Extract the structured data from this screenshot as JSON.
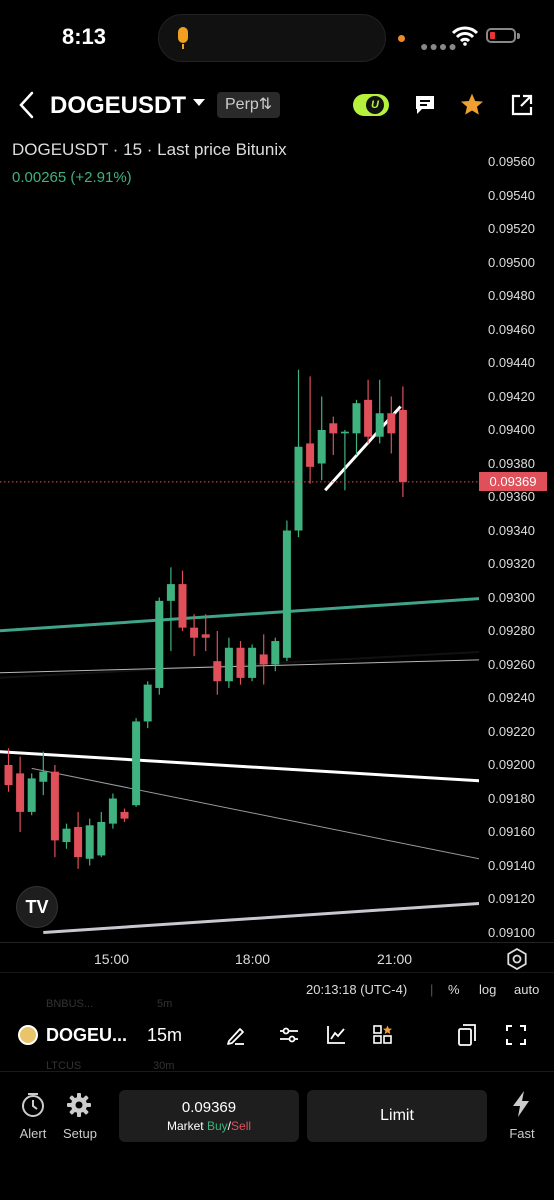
{
  "status_bar": {
    "time": "8:13"
  },
  "header": {
    "pair": "DOGEUSDT",
    "badge": "Perp",
    "badge_icon": "⇅",
    "toggle_letter": "U"
  },
  "chart": {
    "title": "DOGEUSDT · 15 · Last price Bitunix",
    "change": "0.00265 (+2.91%)",
    "last_price": "0.09369",
    "x_ticks": [
      "15:00",
      "18:00",
      "21:00"
    ],
    "time_readout": "20:13:18 (UTC-4)",
    "scale_options": [
      "%",
      "log",
      "auto"
    ]
  },
  "chart_data": {
    "type": "candlestick",
    "interval": "15m",
    "y_ticks": [
      "0.09560",
      "0.09540",
      "0.09520",
      "0.09500",
      "0.09480",
      "0.09460",
      "0.09440",
      "0.09420",
      "0.09400",
      "0.09380",
      "0.09360",
      "0.09340",
      "0.09320",
      "0.09300",
      "0.09280",
      "0.09260",
      "0.09240",
      "0.09220",
      "0.09200",
      "0.09180",
      "0.09160",
      "0.09140",
      "0.09120",
      "0.09100"
    ],
    "ylim": [
      0.091,
      0.0956
    ],
    "last_price": 0.09369,
    "candles": [
      {
        "o": 0.092,
        "h": 0.0921,
        "l": 0.09184,
        "c": 0.09188
      },
      {
        "o": 0.09195,
        "h": 0.09205,
        "l": 0.0916,
        "c": 0.09172
      },
      {
        "o": 0.09172,
        "h": 0.09195,
        "l": 0.0917,
        "c": 0.09192
      },
      {
        "o": 0.0919,
        "h": 0.09208,
        "l": 0.09182,
        "c": 0.09196
      },
      {
        "o": 0.09196,
        "h": 0.092,
        "l": 0.09145,
        "c": 0.09155
      },
      {
        "o": 0.09154,
        "h": 0.09165,
        "l": 0.0915,
        "c": 0.09162
      },
      {
        "o": 0.09163,
        "h": 0.09172,
        "l": 0.09138,
        "c": 0.09145
      },
      {
        "o": 0.09144,
        "h": 0.09168,
        "l": 0.0914,
        "c": 0.09164
      },
      {
        "o": 0.09146,
        "h": 0.09172,
        "l": 0.09145,
        "c": 0.09166
      },
      {
        "o": 0.09165,
        "h": 0.09183,
        "l": 0.09162,
        "c": 0.0918
      },
      {
        "o": 0.09172,
        "h": 0.09174,
        "l": 0.09166,
        "c": 0.09168
      },
      {
        "o": 0.09176,
        "h": 0.09228,
        "l": 0.09175,
        "c": 0.09226
      },
      {
        "o": 0.09226,
        "h": 0.0925,
        "l": 0.09222,
        "c": 0.09248
      },
      {
        "o": 0.09246,
        "h": 0.093,
        "l": 0.09242,
        "c": 0.09298
      },
      {
        "o": 0.09298,
        "h": 0.09318,
        "l": 0.09268,
        "c": 0.09308
      },
      {
        "o": 0.09308,
        "h": 0.09316,
        "l": 0.0928,
        "c": 0.09282
      },
      {
        "o": 0.09282,
        "h": 0.0929,
        "l": 0.09265,
        "c": 0.09276
      },
      {
        "o": 0.09278,
        "h": 0.0929,
        "l": 0.09268,
        "c": 0.09276
      },
      {
        "o": 0.09262,
        "h": 0.0928,
        "l": 0.09242,
        "c": 0.0925
      },
      {
        "o": 0.0925,
        "h": 0.09276,
        "l": 0.09246,
        "c": 0.0927
      },
      {
        "o": 0.0927,
        "h": 0.09274,
        "l": 0.09248,
        "c": 0.09252
      },
      {
        "o": 0.09252,
        "h": 0.09272,
        "l": 0.0925,
        "c": 0.0927
      },
      {
        "o": 0.09266,
        "h": 0.09278,
        "l": 0.09248,
        "c": 0.0926
      },
      {
        "o": 0.0926,
        "h": 0.09276,
        "l": 0.09256,
        "c": 0.09274
      },
      {
        "o": 0.09264,
        "h": 0.09346,
        "l": 0.09262,
        "c": 0.0934
      },
      {
        "o": 0.0934,
        "h": 0.09436,
        "l": 0.09336,
        "c": 0.0939
      },
      {
        "o": 0.09392,
        "h": 0.09432,
        "l": 0.09368,
        "c": 0.09378
      },
      {
        "o": 0.0938,
        "h": 0.0942,
        "l": 0.0937,
        "c": 0.094
      },
      {
        "o": 0.09404,
        "h": 0.09408,
        "l": 0.09385,
        "c": 0.09398
      },
      {
        "o": 0.09398,
        "h": 0.094,
        "l": 0.09364,
        "c": 0.09399
      },
      {
        "o": 0.09398,
        "h": 0.09418,
        "l": 0.09385,
        "c": 0.09416
      },
      {
        "o": 0.09418,
        "h": 0.0943,
        "l": 0.09392,
        "c": 0.09396
      },
      {
        "o": 0.09396,
        "h": 0.0943,
        "l": 0.09392,
        "c": 0.0941
      },
      {
        "o": 0.0941,
        "h": 0.0942,
        "l": 0.09386,
        "c": 0.09398
      },
      {
        "o": 0.09412,
        "h": 0.09426,
        "l": 0.0936,
        "c": 0.09369
      }
    ],
    "trend_lines": [
      {
        "color": "#3fa58a",
        "width": 3,
        "from": [
          -1,
          0.0928
        ],
        "to": [
          42,
          0.093
        ]
      },
      {
        "color": "#111111",
        "width": 2,
        "from": [
          -1,
          0.09252
        ],
        "to": [
          42,
          0.09268
        ]
      },
      {
        "color": "#b8b8b8",
        "width": 1,
        "from": [
          -1,
          0.09255
        ],
        "to": [
          42,
          0.09263
        ]
      },
      {
        "color": "#ffffff",
        "width": 3,
        "from": [
          -1,
          0.09208
        ],
        "to": [
          42,
          0.0919
        ]
      },
      {
        "color": "#9a9a9a",
        "width": 1,
        "from": [
          2,
          0.09198
        ],
        "to": [
          42,
          0.09142
        ]
      },
      {
        "color": "#c8c8d0",
        "width": 3,
        "from": [
          3,
          0.091
        ],
        "to": [
          42,
          0.09118
        ]
      },
      {
        "color": "#ffffff",
        "width": 3,
        "from": [
          27.3,
          0.09364
        ],
        "to": [
          33.8,
          0.09414
        ]
      }
    ],
    "colors": {
      "up": "#3fb27f",
      "down": "#e0505a"
    }
  },
  "toolbar": {
    "pair": "DOGEU...",
    "interval": "15m",
    "ghost_items": [
      "BNBUS...",
      "5m",
      "LTCUS",
      "30m"
    ]
  },
  "bottom_bar": {
    "alert_label": "Alert",
    "setup_label": "Setup",
    "market_price": "0.09369",
    "market_label": "Market",
    "buy_label": "Buy",
    "slash": "/",
    "sell_label": "Sell",
    "limit_label": "Limit",
    "fast_label": "Fast"
  }
}
